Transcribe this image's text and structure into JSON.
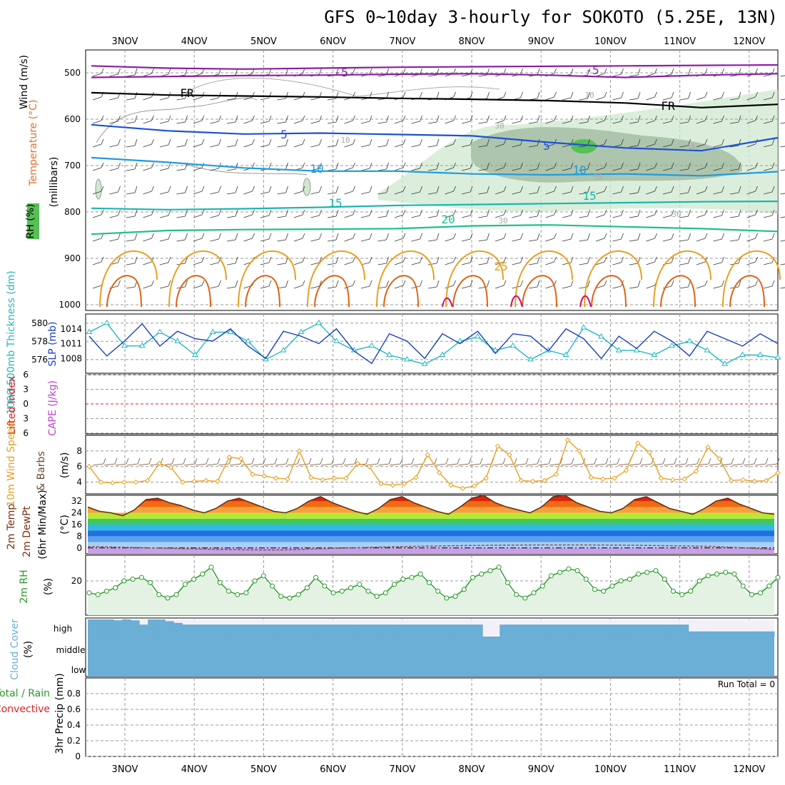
{
  "title": "GFS 0~10day 3-hourly for SOKOTO (5.25E, 13N)",
  "dates": [
    "3NOV",
    "4NOV",
    "5NOV",
    "6NOV",
    "7NOV",
    "8NOV",
    "9NOV",
    "10NOV",
    "11NOV",
    "12NOV"
  ],
  "colors": {
    "temp_purple": "#8b1fa8",
    "freezing": "#000000",
    "blue": "#1e50d8",
    "lightblue": "#1e9be0",
    "teal": "#19b7b0",
    "green": "#1ec08a",
    "orange": "#e8a020",
    "dark_orange": "#e06010",
    "magenta": "#c8106a",
    "rh_fill": "#cfe8cf",
    "slp": "#1a3fc0",
    "thickness": "#22b8c0",
    "wind": "#e8a020",
    "rh2m": "#2a9a2a",
    "cloud": "#6baed6",
    "cloud_bg": "#f4f0f8",
    "lifted": "#e02020"
  },
  "labels": {
    "panel1": {
      "wind": "Wind (m/s)",
      "temperature": "Temperature (°C)",
      "rh": "RH (%)",
      "millibars": "(millibars)"
    },
    "panel2": {
      "thickness": "1000-500mb Thickness (dm)",
      "slp": "SLP (mb)"
    },
    "panel3": {
      "lifted": "Lifted Index",
      "cape": "CAPE (J/kg)"
    },
    "panel4": {
      "wind10": "10m Wind Speed",
      "barbs": "& Barbs",
      "unit": "(m/s)"
    },
    "panel5": {
      "temp": "2m Temp",
      "dewpt": "2m DewPt",
      "minmax": "(6hr Min/Max)",
      "unit": "(°C)"
    },
    "panel6": {
      "rh": "2m RH",
      "unit": "(%)"
    },
    "panel7": {
      "cloud": "Cloud Cover",
      "unit": "(%)",
      "high": "high",
      "middle": "middle",
      "low": "low"
    },
    "panel8": {
      "total": "Total / Rain",
      "convective": "Convective",
      "precip": "3hr Precip (mm)",
      "run_total": "Run Total = 0"
    }
  },
  "chart_data": [
    {
      "type": "line",
      "name": "upper-air cross-section",
      "y_axis": "pressure (mb)",
      "ylim": [
        1050,
        450
      ],
      "y_ticks": [
        500,
        600,
        700,
        800,
        900,
        1000
      ],
      "isotherm_labels": [
        {
          "text": "-5",
          "level": 505
        },
        {
          "text": "-5",
          "level": 500
        },
        {
          "text": "FR",
          "level": 548
        },
        {
          "text": "FR",
          "level": 575
        },
        {
          "text": "5",
          "level": 638
        },
        {
          "text": "5",
          "level": 666
        },
        {
          "text": "10",
          "level": 714
        },
        {
          "text": "10",
          "level": 717
        },
        {
          "text": "15",
          "level": 788
        },
        {
          "text": "15",
          "level": 777
        },
        {
          "text": "20",
          "level": 822
        },
        {
          "text": "25",
          "level": 928
        },
        {
          "text": "10",
          "level": 560
        },
        {
          "text": "30",
          "level": 665
        },
        {
          "text": "10",
          "level": 687
        },
        {
          "text": "50",
          "level": 680
        },
        {
          "text": "50",
          "level": 733
        },
        {
          "text": "30",
          "level": 800
        },
        {
          "text": "30",
          "level": 822
        }
      ],
      "isotherms": [
        {
          "label": "-5",
          "values": [
            485,
            490,
            492,
            490,
            488,
            487,
            486,
            485,
            484,
            483
          ]
        },
        {
          "label": "-5b",
          "values": [
            510,
            508,
            506,
            505,
            503,
            502,
            505,
            510,
            505,
            502
          ]
        },
        {
          "label": "FR",
          "values": [
            543,
            548,
            550,
            552,
            555,
            557,
            560,
            565,
            575,
            568
          ]
        },
        {
          "label": "5",
          "values": [
            612,
            625,
            632,
            630,
            633,
            636,
            650,
            662,
            668,
            640
          ]
        },
        {
          "label": "10",
          "values": [
            683,
            693,
            705,
            712,
            712,
            718,
            720,
            718,
            722,
            713
          ]
        },
        {
          "label": "15",
          "values": [
            792,
            795,
            793,
            790,
            786,
            784,
            782,
            780,
            778,
            777
          ]
        },
        {
          "label": "20",
          "values": [
            848,
            840,
            838,
            837,
            836,
            830,
            828,
            832,
            836,
            842
          ]
        }
      ],
      "x_labels_top": [
        "3NOV",
        "4NOV",
        "5NOV",
        "6NOV",
        "7NOV",
        "8NOV",
        "9NOV",
        "10NOV",
        "11NOV",
        "12NOV"
      ]
    },
    {
      "type": "line",
      "name": "thickness and slp",
      "y_left": [
        576,
        578,
        580
      ],
      "y_right": [
        1008,
        1011,
        1014
      ],
      "thickness": [
        579,
        580,
        577.5,
        577.5,
        579,
        578,
        576.5,
        579,
        579,
        578,
        576,
        577,
        579,
        580,
        578,
        577,
        577.5,
        576.5,
        576,
        575.5,
        576.5,
        578,
        578.5,
        577,
        577.5,
        576,
        577,
        576.5,
        579.5,
        578.5,
        577,
        577,
        576.5,
        577.5,
        578,
        577,
        575.5,
        576.5,
        576.5,
        576.2
      ],
      "slp": [
        1012.5,
        1008.5,
        1011.5,
        1015,
        1010.5,
        1013.5,
        1012,
        1011.5,
        1014,
        1010.5,
        1008,
        1013.5,
        1012.5,
        1011,
        1014,
        1009.5,
        1007,
        1013,
        1011.5,
        1008,
        1013,
        1011,
        1013.5,
        1009,
        1013,
        1012.5,
        1009.5,
        1014,
        1012,
        1008,
        1012.5,
        1010,
        1013.5,
        1011.5,
        1008.5,
        1013.5,
        1012,
        1010.5,
        1013,
        1011
      ]
    },
    {
      "type": "line",
      "name": "lifted index and cape",
      "y_ticks": [
        -6,
        -3,
        0,
        3,
        6
      ],
      "values": []
    },
    {
      "type": "line",
      "name": "10m wind speed",
      "y_ticks": [
        4,
        6,
        8
      ],
      "ylim": [
        2.5,
        10
      ],
      "values": [
        6.0,
        4.0,
        3.9,
        4.0,
        4.0,
        4.2,
        6.4,
        5.9,
        4.0,
        4.1,
        4.2,
        4.1,
        7.2,
        7.0,
        5.0,
        4.8,
        4.5,
        4.4,
        8.0,
        4.6,
        4.3,
        4.5,
        4.5,
        6.4,
        6.0,
        3.8,
        3.6,
        3.8,
        4.6,
        7.5,
        5.2,
        3.6,
        3.2,
        3.5,
        4.5,
        8.6,
        7.5,
        4.2,
        4.1,
        4.2,
        5.0,
        9.4,
        8.0,
        4.6,
        4.4,
        4.5,
        5.5,
        9.0,
        7.8,
        4.5,
        4.3,
        4.4,
        5.4,
        8.5,
        7.0,
        4.2,
        4.3,
        4.1,
        4.2,
        5.2
      ]
    },
    {
      "type": "area",
      "name": "2m temperature",
      "y_ticks": [
        0,
        8,
        16,
        24,
        32
      ],
      "values": [
        28,
        25,
        24,
        22,
        26,
        33,
        34,
        31,
        29,
        26,
        24,
        27,
        32,
        34,
        31,
        28,
        25,
        24,
        27,
        32,
        35,
        31,
        28,
        25,
        23,
        27,
        33,
        35,
        31,
        28,
        25,
        23,
        28,
        34,
        36,
        31,
        28,
        26,
        24,
        28,
        35,
        36,
        31,
        28,
        25,
        24,
        27,
        33,
        35,
        31,
        27,
        25,
        23,
        27,
        32,
        34,
        30,
        27,
        24,
        23
      ]
    },
    {
      "type": "area",
      "name": "2m RH",
      "y_ticks": [
        20
      ],
      "ylim": [
        0,
        35
      ],
      "values": [
        13,
        12,
        14,
        16,
        20,
        21,
        22,
        19,
        12,
        10,
        12,
        18,
        21,
        24,
        28,
        19,
        14,
        12,
        13,
        20,
        23,
        17,
        11,
        10,
        12,
        16,
        22,
        17,
        13,
        14,
        16,
        18,
        14,
        11,
        13,
        18,
        21,
        22,
        24,
        19,
        14,
        10,
        11,
        15,
        22,
        24,
        26,
        28,
        19,
        12,
        10,
        13,
        17,
        23,
        25,
        27,
        26,
        21,
        15,
        14,
        17,
        20,
        21,
        24,
        25,
        26,
        21,
        14,
        12,
        14,
        20,
        23,
        24,
        25,
        24,
        17,
        12,
        13,
        17,
        22
      ]
    },
    {
      "type": "bar",
      "name": "cloud cover",
      "categories": [
        "low",
        "middle",
        "high"
      ],
      "high_values": [
        100,
        100,
        100,
        95,
        100,
        95,
        70,
        100,
        100,
        90,
        80,
        70,
        70,
        70,
        70,
        70,
        70,
        70,
        70,
        70,
        70,
        70,
        70,
        70,
        70,
        70,
        70,
        70,
        70,
        70,
        70,
        70,
        70,
        70,
        70,
        70,
        70,
        70,
        70,
        70,
        70,
        70,
        70,
        70,
        70,
        70,
        0,
        0,
        70,
        70,
        70,
        70,
        70,
        70,
        70,
        70,
        70,
        70,
        70,
        70,
        70,
        70,
        70,
        70,
        70,
        70,
        70,
        70,
        70,
        70,
        30,
        30,
        30,
        30,
        30,
        30,
        30,
        30,
        30,
        30
      ]
    },
    {
      "type": "bar",
      "name": "3hr precipitation",
      "ylim": [
        0,
        1
      ],
      "y_ticks": [
        0,
        0.2,
        0.4,
        0.6,
        0.8
      ],
      "values": []
    }
  ]
}
